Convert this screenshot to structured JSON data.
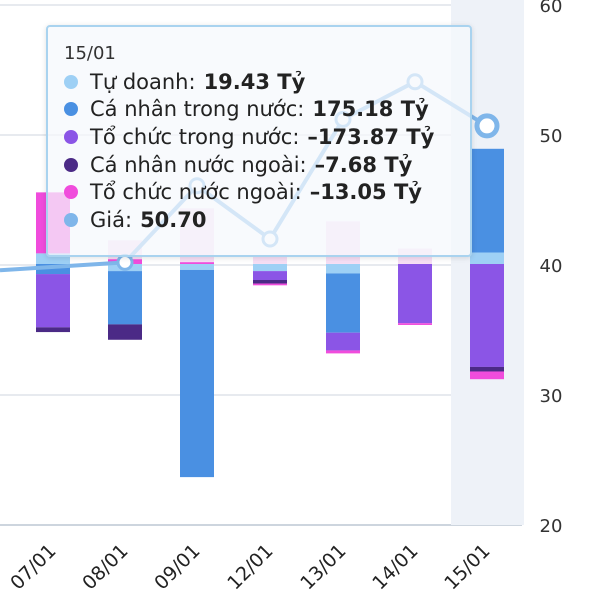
{
  "chart_data": {
    "type": "bar",
    "categories": [
      "07/01",
      "08/01",
      "09/01",
      "12/01",
      "13/01",
      "14/01",
      "15/01"
    ],
    "highlighted_category": "15/01",
    "y_right_axis": {
      "ticks": [
        "20",
        "30",
        "40",
        "50",
        "60"
      ],
      "ylim": [
        20,
        60
      ]
    },
    "flow_scale_note": "",
    "series": [
      {
        "name": "Tự doanh",
        "color": "#9ed0f5",
        "values": [
          18,
          -12,
          -10,
          -12,
          -16,
          0,
          19.43
        ]
      },
      {
        "name": "Cá nhân trong nước",
        "color": "#4a90e2",
        "values": [
          -17,
          -90,
          -350,
          0,
          -100,
          0,
          175.18
        ]
      },
      {
        "name": "Tổ chức trong nước",
        "color": "#8b55e6",
        "values": [
          -90,
          0,
          0,
          -15,
          -30,
          -100,
          -173.87
        ]
      },
      {
        "name": "Cá nhân nước ngoài",
        "color": "#4b2a86",
        "values": [
          -8,
          -26,
          0,
          -6,
          0,
          0,
          -7.68
        ]
      },
      {
        "name": "Tổ chức nước ngoài",
        "color": "#f04cdc",
        "values": [
          103,
          8,
          3,
          -3,
          -5,
          -3,
          -13.05
        ]
      }
    ],
    "ghost_bars": [
      {
        "category": "07/01",
        "top": 40,
        "bottom": 5
      },
      {
        "category": "08/01",
        "top": 40,
        "bottom": 0
      },
      {
        "category": "09/01",
        "top": 94,
        "bottom": 0
      },
      {
        "category": "12/01",
        "top": 14,
        "bottom": 0
      },
      {
        "category": "13/01",
        "top": 72,
        "bottom": 0
      },
      {
        "category": "14/01",
        "top": 26,
        "bottom": 0
      },
      {
        "category": "15/01",
        "top": 19,
        "bottom": 0
      }
    ],
    "price_line": {
      "name": "Giá",
      "color": "#7fb6ea",
      "values": [
        null,
        40.2,
        46.1,
        42.0,
        51.2,
        54.1,
        50.7
      ]
    },
    "price_line_start": 39.6
  },
  "tooltip": {
    "date": "15/01",
    "rows": [
      {
        "label": "Tự doanh:",
        "value": "19.43 Tỷ",
        "color": "#9ed0f5"
      },
      {
        "label": "Cá nhân trong nước:",
        "value": "175.18 Tỷ",
        "color": "#4a90e2"
      },
      {
        "label": "Tổ chức trong nước:",
        "value": "–173.87 Tỷ",
        "color": "#8b55e6"
      },
      {
        "label": "Cá nhân nước ngoài:",
        "value": "–7.68 Tỷ",
        "color": "#4b2a86"
      },
      {
        "label": "Tổ chức nước ngoài:",
        "value": "–13.05 Tỷ",
        "color": "#f04cdc"
      },
      {
        "label": "Giá:",
        "value": "50.70",
        "color": "#7fb6ea"
      }
    ]
  }
}
